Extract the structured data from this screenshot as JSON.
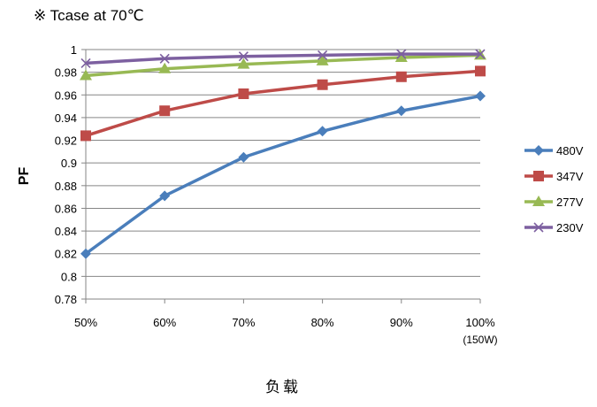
{
  "chart_data": {
    "type": "line",
    "title": "※ Tcase at 70℃",
    "xlabel": "负载",
    "ylabel": "PF",
    "categories": [
      "50%",
      "60%",
      "70%",
      "80%",
      "90%",
      "100%"
    ],
    "category_sublabels": [
      "",
      "",
      "",
      "",
      "",
      "(150W)"
    ],
    "ylim": [
      0.78,
      1.0
    ],
    "yticks": [
      "0.78",
      "0.8",
      "0.82",
      "0.84",
      "0.86",
      "0.88",
      "0.9",
      "0.92",
      "0.94",
      "0.96",
      "0.98",
      "1"
    ],
    "grid": true,
    "legend_position": "right",
    "series": [
      {
        "name": "480V",
        "color": "#4a7ebb",
        "marker": "diamond",
        "values": [
          0.82,
          0.871,
          0.905,
          0.928,
          0.946,
          0.959
        ]
      },
      {
        "name": "347V",
        "color": "#be4b48",
        "marker": "square",
        "values": [
          0.924,
          0.946,
          0.961,
          0.969,
          0.976,
          0.981
        ]
      },
      {
        "name": "277V",
        "color": "#98b954",
        "marker": "triangle",
        "values": [
          0.977,
          0.983,
          0.987,
          0.99,
          0.993,
          0.995
        ]
      },
      {
        "name": "230V",
        "color": "#7d60a0",
        "marker": "x",
        "values": [
          0.988,
          0.992,
          0.994,
          0.995,
          0.996,
          0.996
        ]
      }
    ]
  }
}
